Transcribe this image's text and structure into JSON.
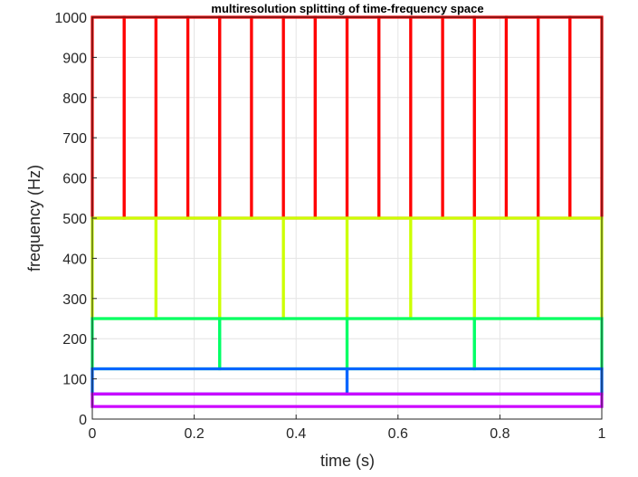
{
  "chart_data": {
    "type": "rectangle-tiling",
    "title": "multiresolution splitting of time-frequency space",
    "xlabel": "time (s)",
    "ylabel": "frequency (Hz)",
    "xlim": [
      0,
      1
    ],
    "ylim": [
      0,
      1000
    ],
    "x_ticks": [
      0,
      0.2,
      0.4,
      0.6,
      0.8,
      1
    ],
    "x_tick_labels": [
      "0",
      "0.2",
      "0.4",
      "0.6",
      "0.8",
      "1"
    ],
    "y_ticks": [
      0,
      100,
      200,
      300,
      400,
      500,
      600,
      700,
      800,
      900,
      1000
    ],
    "y_tick_labels": [
      "0",
      "100",
      "200",
      "300",
      "400",
      "500",
      "600",
      "700",
      "800",
      "900",
      "1000"
    ],
    "grid": true,
    "series": [
      {
        "f_low": 500,
        "f_high": 1000,
        "boxes": 16,
        "color": "#ff0000"
      },
      {
        "f_low": 250,
        "f_high": 500,
        "boxes": 8,
        "color": "#ccff00"
      },
      {
        "f_low": 125,
        "f_high": 250,
        "boxes": 4,
        "color": "#00ff66"
      },
      {
        "f_low": 62.5,
        "f_high": 125,
        "boxes": 2,
        "color": "#0066ff"
      },
      {
        "f_low": 31.25,
        "f_high": 62.5,
        "boxes": 1,
        "color": "#cc00ff"
      }
    ]
  }
}
